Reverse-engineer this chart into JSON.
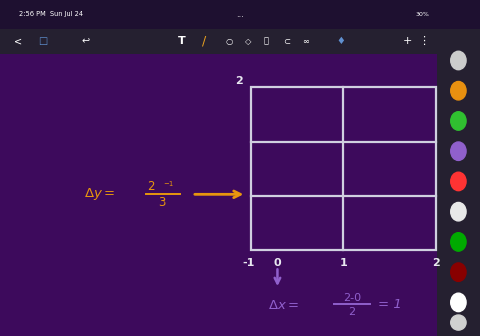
{
  "bg_color": "#3d0a5c",
  "status_bar_color": "#1e1030",
  "toolbar_color": "#252030",
  "sidebar_color": "#252030",
  "grid_color": "#d0d0e0",
  "grid_lw": 1.6,
  "orange": "#e8960e",
  "purple": "#9060cc",
  "white": "#e8e8f0",
  "fig_width": 4.8,
  "fig_height": 3.36,
  "dpi": 100,
  "gx": 0.523,
  "gy": 0.255,
  "gw": 0.385,
  "gh": 0.485,
  "sidebar_colors": [
    "#cccccc",
    "#e89010",
    "#30c030",
    "#9060cc",
    "#ff3333",
    "#e8e8e8",
    "#00aa00",
    "#880000",
    "#ffffff"
  ]
}
